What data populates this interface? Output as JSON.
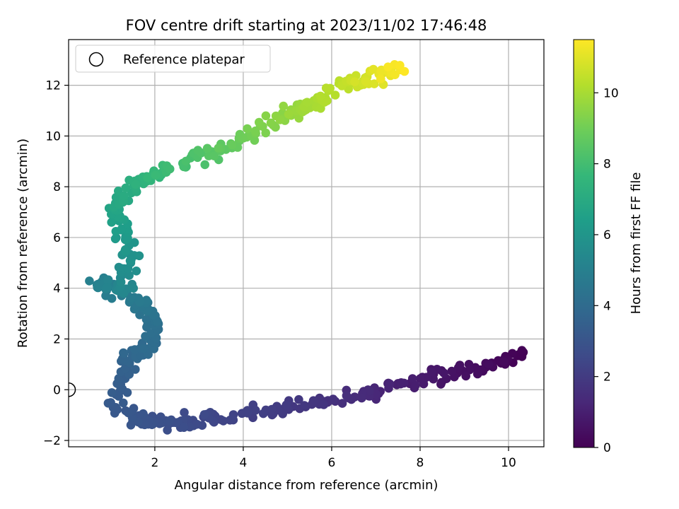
{
  "chart_data": {
    "type": "scatter",
    "title": "FOV centre drift starting at 2023/11/02 17:46:48",
    "xlabel": "Angular distance from reference (arcmin)",
    "ylabel": "Rotation from reference (arcmin)",
    "xlim": [
      0.05,
      10.8
    ],
    "ylim": [
      -2.25,
      13.8
    ],
    "xticks": [
      2,
      4,
      6,
      8,
      10
    ],
    "yticks": [
      -2,
      0,
      2,
      4,
      6,
      8,
      10,
      12
    ],
    "grid": true,
    "legend": {
      "placement": "top-left",
      "entries": [
        "Reference platepar"
      ]
    },
    "reference_point": {
      "x": 0.05,
      "y": 0.0
    },
    "colorbar": {
      "label": "Hours from first FF file",
      "colormap": "viridis",
      "range": [
        0,
        11.5
      ],
      "ticks": [
        0,
        2,
        4,
        6,
        8,
        10
      ]
    },
    "series_path": [
      {
        "x": 10.3,
        "y": 1.4,
        "h": 0.0
      },
      {
        "x": 9.5,
        "y": 0.9,
        "h": 0.3
      },
      {
        "x": 8.6,
        "y": 0.6,
        "h": 0.6
      },
      {
        "x": 7.6,
        "y": 0.2,
        "h": 1.0
      },
      {
        "x": 6.6,
        "y": -0.2,
        "h": 1.4
      },
      {
        "x": 5.5,
        "y": -0.6,
        "h": 1.8
      },
      {
        "x": 4.5,
        "y": -0.85,
        "h": 2.1
      },
      {
        "x": 3.4,
        "y": -1.1,
        "h": 2.4
      },
      {
        "x": 2.5,
        "y": -1.3,
        "h": 2.7
      },
      {
        "x": 1.8,
        "y": -1.3,
        "h": 2.95
      },
      {
        "x": 1.1,
        "y": -0.7,
        "h": 3.2
      },
      {
        "x": 1.3,
        "y": 0.8,
        "h": 3.5
      },
      {
        "x": 1.5,
        "y": 1.4,
        "h": 3.8
      },
      {
        "x": 2.0,
        "y": 1.8,
        "h": 4.05
      },
      {
        "x": 1.9,
        "y": 2.8,
        "h": 4.3
      },
      {
        "x": 1.5,
        "y": 3.6,
        "h": 4.7
      },
      {
        "x": 0.6,
        "y": 4.2,
        "h": 5.0
      },
      {
        "x": 1.3,
        "y": 4.0,
        "h": 5.3
      },
      {
        "x": 1.4,
        "y": 5.2,
        "h": 5.8
      },
      {
        "x": 1.3,
        "y": 6.5,
        "h": 6.4
      },
      {
        "x": 1.1,
        "y": 7.2,
        "h": 6.8
      },
      {
        "x": 1.6,
        "y": 8.2,
        "h": 7.3
      },
      {
        "x": 2.3,
        "y": 8.6,
        "h": 7.8
      },
      {
        "x": 3.2,
        "y": 9.3,
        "h": 8.4
      },
      {
        "x": 4.1,
        "y": 10.0,
        "h": 9.0
      },
      {
        "x": 5.0,
        "y": 10.9,
        "h": 9.6
      },
      {
        "x": 5.6,
        "y": 11.2,
        "h": 10.0
      },
      {
        "x": 6.3,
        "y": 12.1,
        "h": 10.4
      },
      {
        "x": 6.9,
        "y": 12.3,
        "h": 10.9
      },
      {
        "x": 7.5,
        "y": 12.7,
        "h": 11.5
      }
    ],
    "point_count": 560
  }
}
